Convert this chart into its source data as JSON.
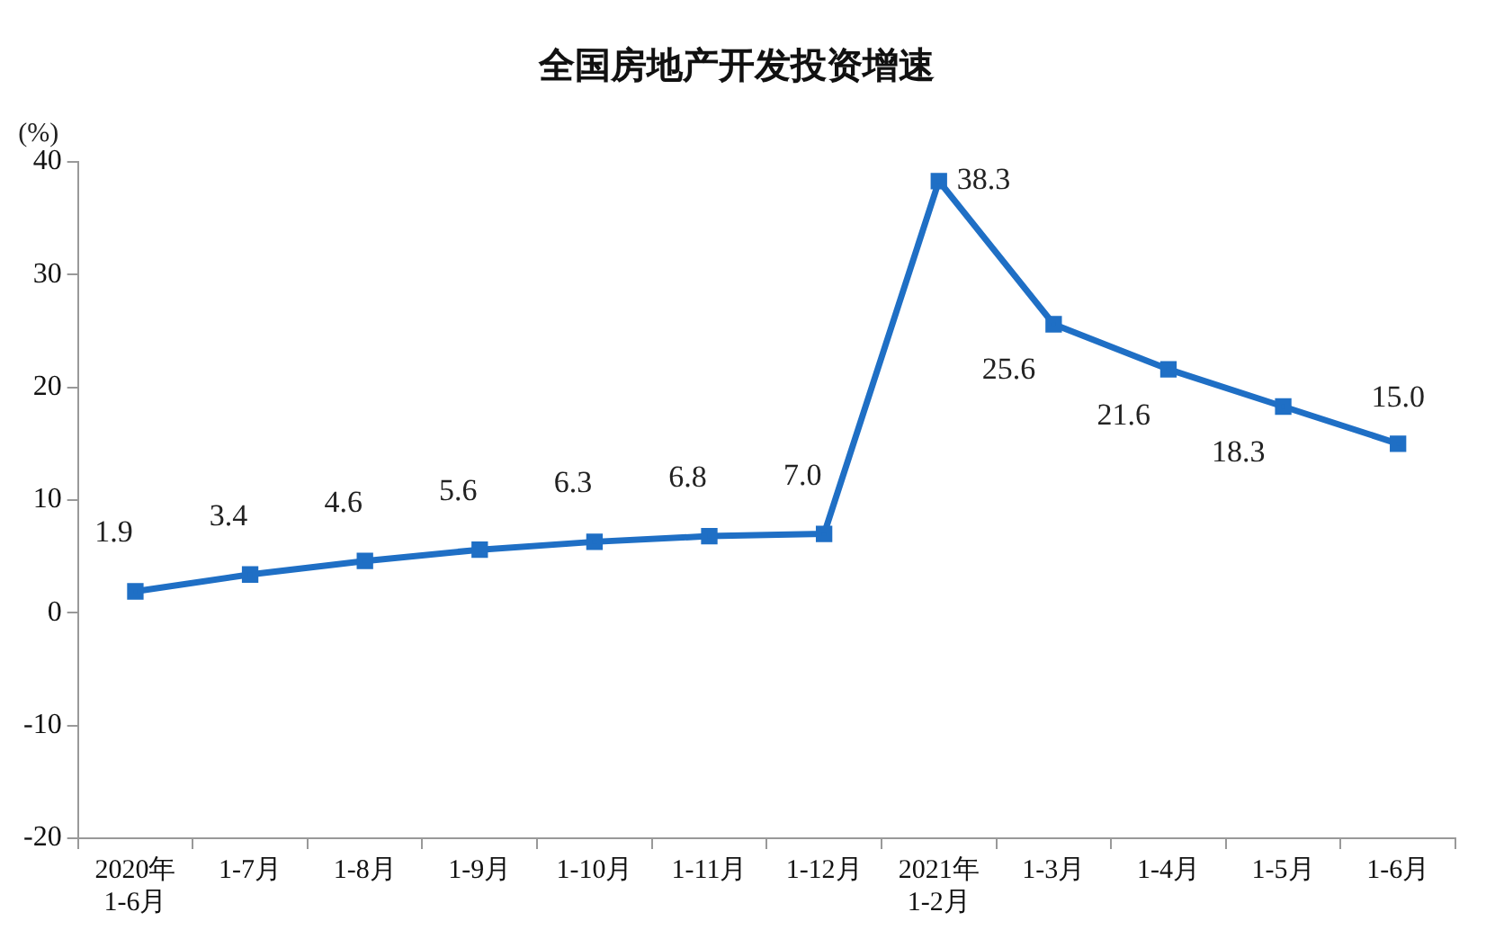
{
  "chart_data": {
    "type": "line",
    "title": "全国房地产开发投资增速",
    "ylabel": "(%)",
    "categories": [
      "2020年\n1-6月",
      "1-7月",
      "1-8月",
      "1-9月",
      "1-10月",
      "1-11月",
      "1-12月",
      "2021年\n1-2月",
      "1-3月",
      "1-4月",
      "1-5月",
      "1-6月"
    ],
    "series": [
      {
        "color": "#1f6fc5",
        "values": [
          1.9,
          3.4,
          4.6,
          5.6,
          6.3,
          6.8,
          7.0,
          38.3,
          25.6,
          21.6,
          18.3,
          15.0
        ],
        "value_labels": [
          "1.9",
          "3.4",
          "4.6",
          "5.6",
          "6.3",
          "6.8",
          "7.0",
          "38.3",
          "25.6",
          "21.6",
          "18.3",
          "15.0"
        ]
      }
    ],
    "ylim": [
      -20,
      40
    ],
    "yticks": [
      -20,
      -10,
      0,
      10,
      20,
      30,
      40
    ],
    "grid": false,
    "legend": false,
    "marker": "square",
    "line_style": "solid"
  }
}
